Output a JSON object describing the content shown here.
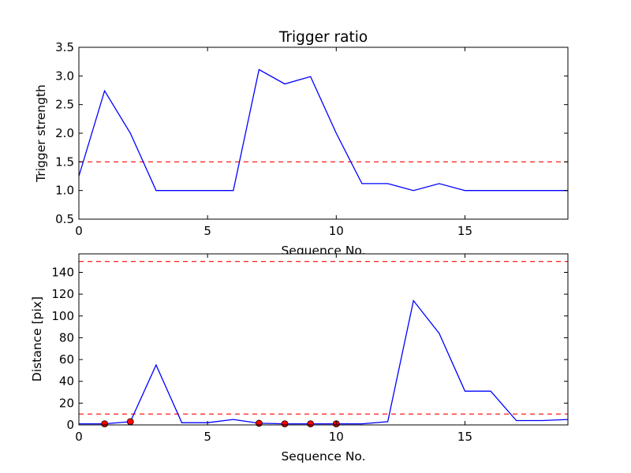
{
  "chart_data": [
    {
      "type": "line",
      "title": "Trigger ratio",
      "xlabel": "Sequence No.",
      "ylabel": "Trigger strength",
      "xlim": [
        0,
        19
      ],
      "ylim": [
        0.5,
        3.5
      ],
      "xticks": [
        0,
        5,
        10,
        15
      ],
      "yticks": [
        0.5,
        1.0,
        1.5,
        2.0,
        2.5,
        3.0,
        3.5
      ],
      "ytick_decimals": 1,
      "grid": false,
      "series": [
        {
          "color": "#0000ff",
          "x": [
            0,
            1,
            2,
            3,
            4,
            5,
            6,
            7,
            8,
            9,
            10,
            11,
            12,
            13,
            14,
            15,
            16,
            17,
            18,
            19
          ],
          "y": [
            1.25,
            2.74,
            2.0,
            1.0,
            1.0,
            1.0,
            1.0,
            3.11,
            2.86,
            2.99,
            2.0,
            1.12,
            1.12,
            1.0,
            1.12,
            1.0,
            1.0,
            1.0,
            1.0,
            1.0
          ]
        }
      ],
      "thresholds": [
        {
          "y": 1.5,
          "color": "#ff0000",
          "style": "dashed"
        }
      ]
    },
    {
      "type": "line",
      "title": "",
      "xlabel": "Sequence No.",
      "ylabel": "Distance [pix]",
      "xlim": [
        0,
        19
      ],
      "ylim": [
        0,
        157
      ],
      "xticks": [
        0,
        5,
        10,
        15
      ],
      "yticks": [
        0,
        20,
        40,
        60,
        80,
        100,
        120,
        140
      ],
      "ytick_decimals": 0,
      "grid": false,
      "series": [
        {
          "color": "#0000ff",
          "x": [
            0,
            1,
            2,
            3,
            4,
            5,
            6,
            7,
            8,
            9,
            10,
            11,
            12,
            13,
            14,
            15,
            16,
            17,
            18,
            19
          ],
          "y": [
            1,
            1,
            3,
            55,
            2,
            2,
            5,
            1.5,
            1,
            1,
            1,
            1,
            3,
            114,
            84,
            31,
            31,
            4,
            4,
            5
          ]
        }
      ],
      "markers": {
        "color": "#ff0000",
        "x": [
          1,
          2,
          7,
          8,
          9,
          10
        ],
        "y": [
          1,
          3,
          1.5,
          1,
          1,
          1
        ]
      },
      "thresholds": [
        {
          "y": 150,
          "color": "#ff0000",
          "style": "dashed"
        },
        {
          "y": 10,
          "color": "#ff0000",
          "style": "dashed"
        }
      ]
    }
  ]
}
